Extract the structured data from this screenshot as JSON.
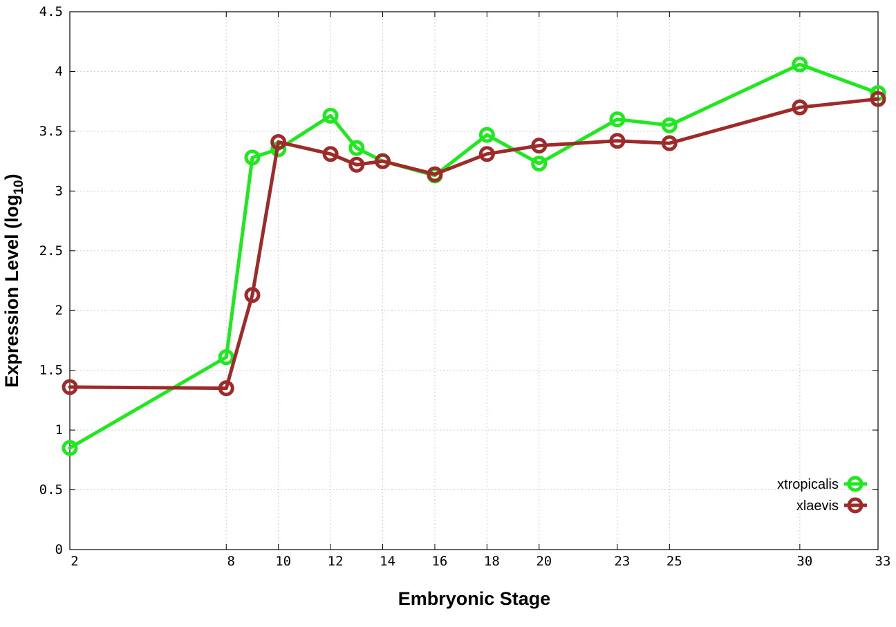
{
  "chart_data": {
    "type": "line",
    "xlabel": "Embryonic Stage",
    "ylabel_main": "Expression Level (log",
    "ylabel_sub": "10",
    "ylabel_close": ")",
    "x": [
      2,
      8,
      9,
      10,
      12,
      13,
      14,
      16,
      18,
      20,
      23,
      25,
      30,
      33
    ],
    "xticks": [
      2,
      8,
      10,
      12,
      14,
      16,
      18,
      20,
      23,
      25,
      30,
      33
    ],
    "xtick_labels": [
      "2",
      "8",
      "10",
      "12",
      "14",
      "16",
      "18",
      "20",
      "23",
      "25",
      "30",
      "33"
    ],
    "xlim": [
      2,
      33
    ],
    "ylim": [
      0,
      4.5
    ],
    "yticks": [
      0,
      0.5,
      1,
      1.5,
      2,
      2.5,
      3,
      3.5,
      4,
      4.5
    ],
    "ytick_labels": [
      "0",
      "0.5",
      "1",
      "1.5",
      "2",
      "2.5",
      "3",
      "3.5",
      "4",
      "4.5"
    ],
    "grid": true,
    "legend_position": "bottom-right",
    "series": [
      {
        "name": "xtropicalis",
        "color": "#1ee81e",
        "values": [
          0.85,
          1.61,
          3.28,
          3.35,
          3.63,
          3.36,
          3.25,
          3.13,
          3.47,
          3.23,
          3.6,
          3.55,
          4.06,
          3.82
        ]
      },
      {
        "name": "xlaevis",
        "color": "#9e2a2a",
        "values": [
          1.36,
          1.35,
          2.13,
          3.41,
          3.31,
          3.22,
          3.25,
          3.14,
          3.31,
          3.38,
          3.42,
          3.4,
          3.7,
          3.77
        ]
      }
    ]
  }
}
